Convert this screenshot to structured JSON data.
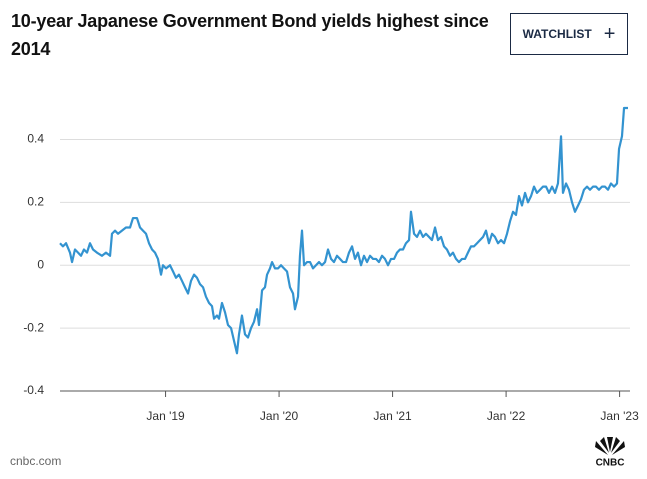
{
  "chart_data": {
    "type": "line",
    "title": "10-year Japanese Government Bond yields highest since 2014",
    "button": "WATCHLIST",
    "source": "cnbc.com",
    "logo": "CNBC",
    "color": "#3393d0",
    "grid": true,
    "x": [
      2018.07,
      2018.096,
      2018.123,
      2018.158,
      2018.176,
      2018.202,
      2018.229,
      2018.255,
      2018.281,
      2018.308,
      2018.334,
      2018.361,
      2018.396,
      2018.44,
      2018.475,
      2018.511,
      2018.528,
      2018.555,
      2018.581,
      2018.616,
      2018.651,
      2018.687,
      2018.713,
      2018.748,
      2018.775,
      2018.801,
      2018.828,
      2018.854,
      2018.881,
      2018.907,
      2018.933,
      2018.96,
      2018.977,
      2019.004,
      2019.039,
      2019.066,
      2019.092,
      2019.118,
      2019.145,
      2019.171,
      2019.198,
      2019.224,
      2019.251,
      2019.277,
      2019.303,
      2019.33,
      2019.356,
      2019.383,
      2019.409,
      2019.427,
      2019.453,
      2019.471,
      2019.497,
      2019.524,
      2019.55,
      2019.577,
      2019.603,
      2019.629,
      2019.647,
      2019.673,
      2019.7,
      2019.726,
      2019.753,
      2019.779,
      2019.806,
      2019.823,
      2019.85,
      2019.876,
      2019.894,
      2019.92,
      2019.938,
      2019.964,
      2019.991,
      2020.017,
      2020.043,
      2020.07,
      2020.096,
      2020.123,
      2020.14,
      2020.167,
      2020.184,
      2020.202,
      2020.22,
      2020.246,
      2020.273,
      2020.299,
      2020.325,
      2020.352,
      2020.378,
      2020.405,
      2020.431,
      2020.458,
      2020.484,
      2020.51,
      2020.537,
      2020.563,
      2020.59,
      2020.616,
      2020.643,
      2020.669,
      2020.695,
      2020.722,
      2020.748,
      2020.775,
      2020.801,
      2020.828,
      2020.854,
      2020.88,
      2020.907,
      2020.933,
      2020.96,
      2020.986,
      2021.013,
      2021.039,
      2021.065,
      2021.092,
      2021.118,
      2021.145,
      2021.162,
      2021.189,
      2021.215,
      2021.242,
      2021.268,
      2021.294,
      2021.321,
      2021.347,
      2021.374,
      2021.4,
      2021.427,
      2021.453,
      2021.479,
      2021.506,
      2021.532,
      2021.559,
      2021.585,
      2021.612,
      2021.638,
      2021.664,
      2021.691,
      2021.717,
      2021.744,
      2021.77,
      2021.797,
      2021.823,
      2021.849,
      2021.876,
      2021.902,
      2021.929,
      2021.955,
      2021.982,
      2022.008,
      2022.035,
      2022.061,
      2022.087,
      2022.114,
      2022.14,
      2022.167,
      2022.193,
      2022.22,
      2022.246,
      2022.272,
      2022.299,
      2022.325,
      2022.352,
      2022.378,
      2022.405,
      2022.431,
      2022.457,
      2022.484,
      2022.501,
      2022.528,
      2022.554,
      2022.581,
      2022.607,
      2022.634,
      2022.66,
      2022.686,
      2022.713,
      2022.739,
      2022.766,
      2022.792,
      2022.818,
      2022.845,
      2022.871,
      2022.898,
      2022.924,
      2022.951,
      2022.977,
      2022.995,
      2023.021,
      2023.039,
      2023.074
    ],
    "values": [
      0.07,
      0.06,
      0.07,
      0.04,
      0.01,
      0.05,
      0.04,
      0.03,
      0.05,
      0.04,
      0.07,
      0.05,
      0.04,
      0.03,
      0.04,
      0.03,
      0.1,
      0.11,
      0.1,
      0.11,
      0.12,
      0.12,
      0.15,
      0.15,
      0.12,
      0.11,
      0.1,
      0.07,
      0.05,
      0.04,
      0.02,
      -0.03,
      0.0,
      -0.01,
      0.0,
      -0.02,
      -0.04,
      -0.03,
      -0.05,
      -0.07,
      -0.09,
      -0.05,
      -0.03,
      -0.04,
      -0.06,
      -0.07,
      -0.1,
      -0.12,
      -0.13,
      -0.17,
      -0.16,
      -0.17,
      -0.12,
      -0.15,
      -0.19,
      -0.2,
      -0.24,
      -0.28,
      -0.22,
      -0.16,
      -0.22,
      -0.23,
      -0.2,
      -0.18,
      -0.14,
      -0.19,
      -0.08,
      -0.07,
      -0.03,
      -0.01,
      0.01,
      -0.01,
      -0.01,
      0.0,
      -0.01,
      -0.02,
      -0.07,
      -0.09,
      -0.14,
      -0.1,
      0.03,
      0.11,
      0.0,
      0.01,
      0.01,
      -0.01,
      0.0,
      0.01,
      0.0,
      0.01,
      0.05,
      0.02,
      0.01,
      0.03,
      0.02,
      0.01,
      0.01,
      0.04,
      0.06,
      0.02,
      0.04,
      0.0,
      0.03,
      0.01,
      0.03,
      0.02,
      0.02,
      0.01,
      0.03,
      0.02,
      0.0,
      0.02,
      0.02,
      0.04,
      0.05,
      0.05,
      0.07,
      0.08,
      0.17,
      0.1,
      0.09,
      0.11,
      0.09,
      0.1,
      0.09,
      0.08,
      0.12,
      0.08,
      0.09,
      0.06,
      0.05,
      0.03,
      0.04,
      0.02,
      0.01,
      0.02,
      0.02,
      0.04,
      0.06,
      0.06,
      0.07,
      0.08,
      0.09,
      0.11,
      0.07,
      0.1,
      0.09,
      0.07,
      0.08,
      0.07,
      0.1,
      0.14,
      0.17,
      0.16,
      0.22,
      0.19,
      0.23,
      0.2,
      0.22,
      0.25,
      0.23,
      0.24,
      0.25,
      0.25,
      0.23,
      0.25,
      0.23,
      0.26,
      0.41,
      0.23,
      0.26,
      0.24,
      0.2,
      0.17,
      0.19,
      0.21,
      0.24,
      0.25,
      0.24,
      0.25,
      0.25,
      0.24,
      0.25,
      0.25,
      0.24,
      0.26,
      0.25,
      0.26,
      0.37,
      0.41,
      0.5,
      0.5
    ],
    "xlim": [
      2018.07,
      2023.074
    ],
    "xticks": [
      {
        "value": 2019,
        "label": "Jan '19"
      },
      {
        "value": 2020,
        "label": "Jan '20"
      },
      {
        "value": 2021,
        "label": "Jan '21"
      },
      {
        "value": 2022,
        "label": "Jan '22"
      },
      {
        "value": 2023,
        "label": "Jan '23"
      }
    ],
    "ylim": [
      -0.4,
      0.5
    ],
    "yticks": [
      -0.4,
      -0.2,
      0,
      0.2,
      0.4
    ]
  }
}
